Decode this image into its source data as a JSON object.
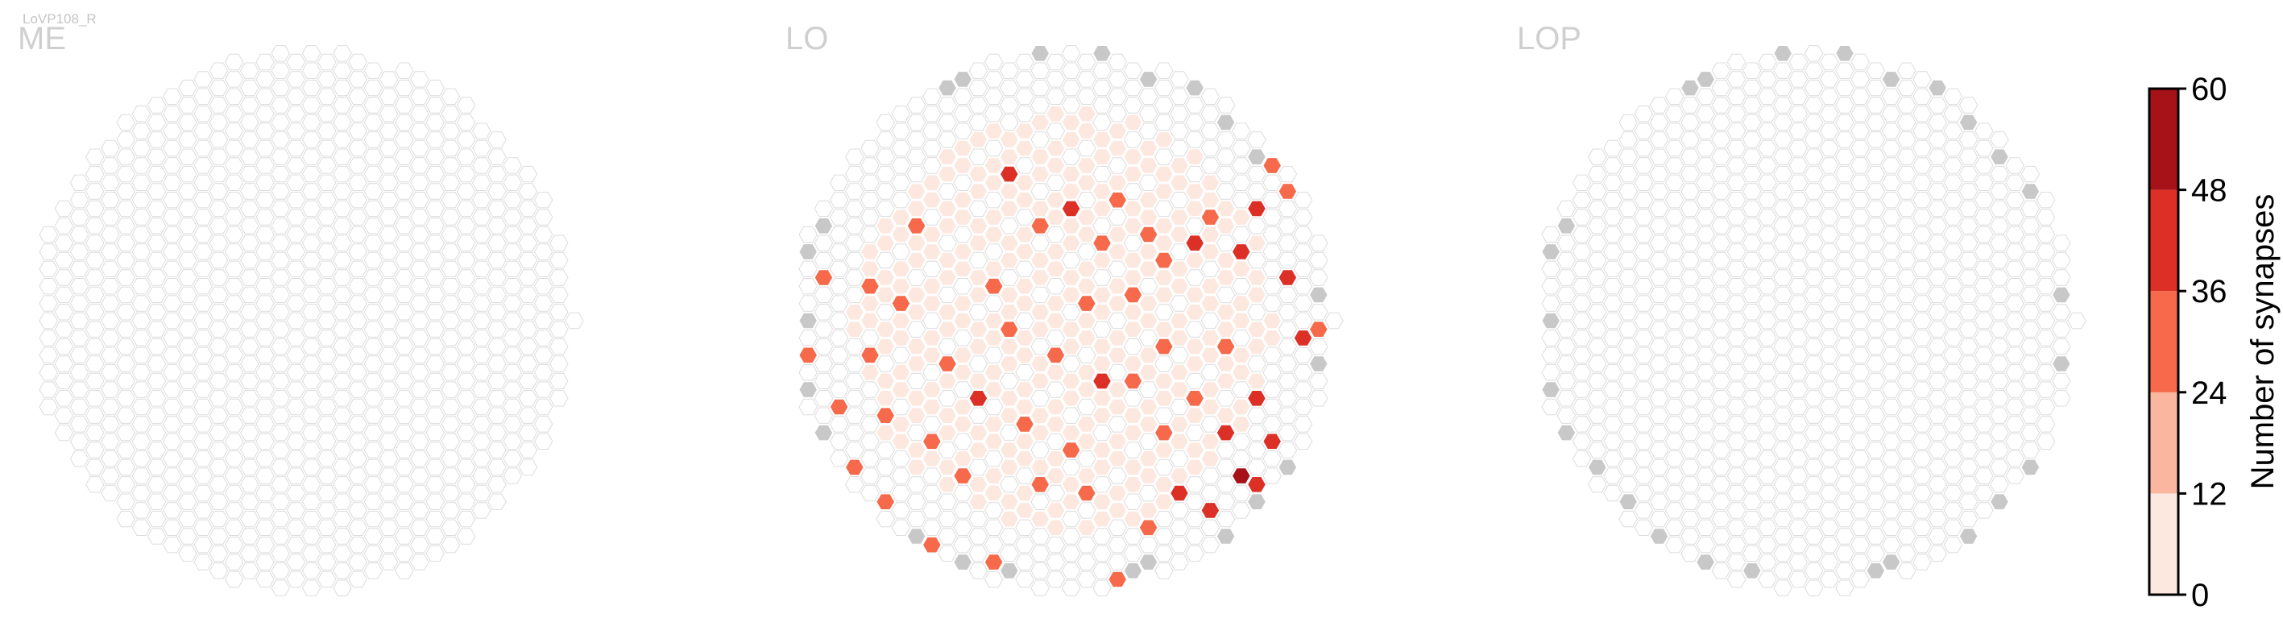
{
  "figure": {
    "corner_label": "LoVP108_R"
  },
  "chart_data": [
    {
      "type": "heatmap",
      "title": "ME",
      "shape": "hexagonal-grid",
      "missing_color": "#c8c8c8",
      "empty_cell_stroke": "#dddddd",
      "series": [
        {
          "description_source": "all columns without synapses",
          "values": []
        }
      ]
    },
    {
      "type": "heatmap",
      "title": "LO",
      "shape": "hexagonal-grid",
      "missing_color": "#c8c8c8",
      "series": [
        {
          "values": [
            {
              "x": 20,
              "y": 19,
              "v": 40
            },
            {
              "x": 19,
              "y": 14,
              "v": 30
            },
            {
              "x": 22,
              "y": 14,
              "v": 29
            },
            {
              "x": 24,
              "y": 12,
              "v": 28
            },
            {
              "x": 23,
              "y": 10,
              "v": 28
            },
            {
              "x": 26,
              "y": 11,
              "v": 39
            },
            {
              "x": 27,
              "y": 9,
              "v": 30
            },
            {
              "x": 29,
              "y": 11,
              "v": 40
            },
            {
              "x": 30,
              "y": 9,
              "v": 38
            },
            {
              "x": 32,
              "y": 8,
              "v": 29
            },
            {
              "x": 31,
              "y": 6,
              "v": 30
            },
            {
              "x": 32,
              "y": 13,
              "v": 41
            },
            {
              "x": 35,
              "y": 5,
              "v": 28
            },
            {
              "x": 33,
              "y": 16,
              "v": 40
            },
            {
              "x": 30,
              "y": 20,
              "v": 44
            },
            {
              "x": 28,
              "y": 22,
              "v": 46
            },
            {
              "x": 29,
              "y": 24,
              "v": 50
            },
            {
              "x": 27,
              "y": 26,
              "v": 46
            },
            {
              "x": 30,
              "y": 25,
              "v": 40
            },
            {
              "x": 27,
              "y": 29,
              "v": 38
            },
            {
              "x": 29,
              "y": 28,
              "v": 30
            },
            {
              "x": 33,
              "y": 27,
              "v": 52
            },
            {
              "x": 34,
              "y": 25,
              "v": 40
            },
            {
              "x": 31,
              "y": 22,
              "v": 38
            },
            {
              "x": 25,
              "y": 25,
              "v": 42
            },
            {
              "x": 24,
              "y": 22,
              "v": 30
            },
            {
              "x": 23,
              "y": 27,
              "v": 28
            },
            {
              "x": 22,
              "y": 19,
              "v": 28
            },
            {
              "x": 18,
              "y": 23,
              "v": 30
            },
            {
              "x": 16,
              "y": 25,
              "v": 29
            },
            {
              "x": 15,
              "y": 21,
              "v": 28
            },
            {
              "x": 12,
              "y": 20,
              "v": 38
            },
            {
              "x": 11,
              "y": 24,
              "v": 28
            },
            {
              "x": 10,
              "y": 18,
              "v": 30
            },
            {
              "x": 9,
              "y": 22,
              "v": 28
            },
            {
              "x": 6,
              "y": 21,
              "v": 29
            },
            {
              "x": 5,
              "y": 17,
              "v": 28
            },
            {
              "x": 3,
              "y": 20,
              "v": 29
            },
            {
              "x": 4,
              "y": 24,
              "v": 29
            },
            {
              "x": 1,
              "y": 17,
              "v": 30
            },
            {
              "x": 2,
              "y": 13,
              "v": 29
            },
            {
              "x": 5,
              "y": 13,
              "v": 30
            },
            {
              "x": 7,
              "y": 14,
              "v": 28
            },
            {
              "x": 8,
              "y": 10,
              "v": 30
            },
            {
              "x": 13,
              "y": 13,
              "v": 29
            },
            {
              "x": 14,
              "y": 16,
              "v": 28
            },
            {
              "x": 17,
              "y": 17,
              "v": 30
            },
            {
              "x": 36,
              "y": 9,
              "v": 30
            },
            {
              "x": 37,
              "y": 13,
              "v": 38
            },
            {
              "x": 39,
              "y": 11,
              "v": 40
            },
            {
              "x": 40,
              "y": 14,
              "v": 30
            },
            {
              "x": 38,
              "y": 17,
              "v": 29
            },
            {
              "x": 36,
              "y": 18,
              "v": 28
            },
            {
              "x": 35,
              "y": 21,
              "v": 30
            },
            {
              "x": 37,
              "y": 22,
              "v": 29
            },
            {
              "x": 14,
              "y": 7,
              "v": 40
            },
            {
              "x": 16,
              "y": 10,
              "v": 28
            },
            {
              "x": 18,
              "y": 9,
              "v": 40
            },
            {
              "x": 20,
              "y": 11,
              "v": 28
            },
            {
              "x": 21,
              "y": 8,
              "v": 30
            },
            {
              "x": 9,
              "y": 28,
              "v": 30
            },
            {
              "x": 13,
              "y": 29,
              "v": 29
            },
            {
              "x": 17,
              "y": 31,
              "v": 30
            },
            {
              "x": 21,
              "y": 30,
              "v": 29
            },
            {
              "x": 25,
              "y": 31,
              "v": 30
            },
            {
              "x": 26,
              "y": 34,
              "v": 42
            },
            {
              "x": 22,
              "y": 33,
              "v": 28
            },
            {
              "x": 12,
              "y": 32,
              "v": 28
            },
            {
              "x": 33,
              "y": 30,
              "v": 29
            },
            {
              "x": 34,
              "y": 16,
              "v": 30
            },
            {
              "x": 28,
              "y": 17,
              "v": 29
            },
            {
              "x": 24,
              "y": 17,
              "v": 28
            },
            {
              "x": 26,
              "y": 20,
              "v": 30
            },
            {
              "x": 19,
              "y": 25,
              "v": 28
            },
            {
              "x": 6,
              "y": 26,
              "v": 28
            }
          ]
        }
      ]
    },
    {
      "type": "heatmap",
      "title": "LOP",
      "shape": "hexagonal-grid",
      "missing_color": "#c8c8c8",
      "series": [
        {
          "values": []
        }
      ]
    }
  ],
  "colorbar": {
    "label": "Number of synapses",
    "ticks": [
      "0",
      "12",
      "24",
      "36",
      "48",
      "60"
    ],
    "range": [
      0,
      60
    ],
    "colors": [
      "#fde8df",
      "#fbb6a0",
      "#f6694a",
      "#dc3027",
      "#a51218"
    ]
  }
}
